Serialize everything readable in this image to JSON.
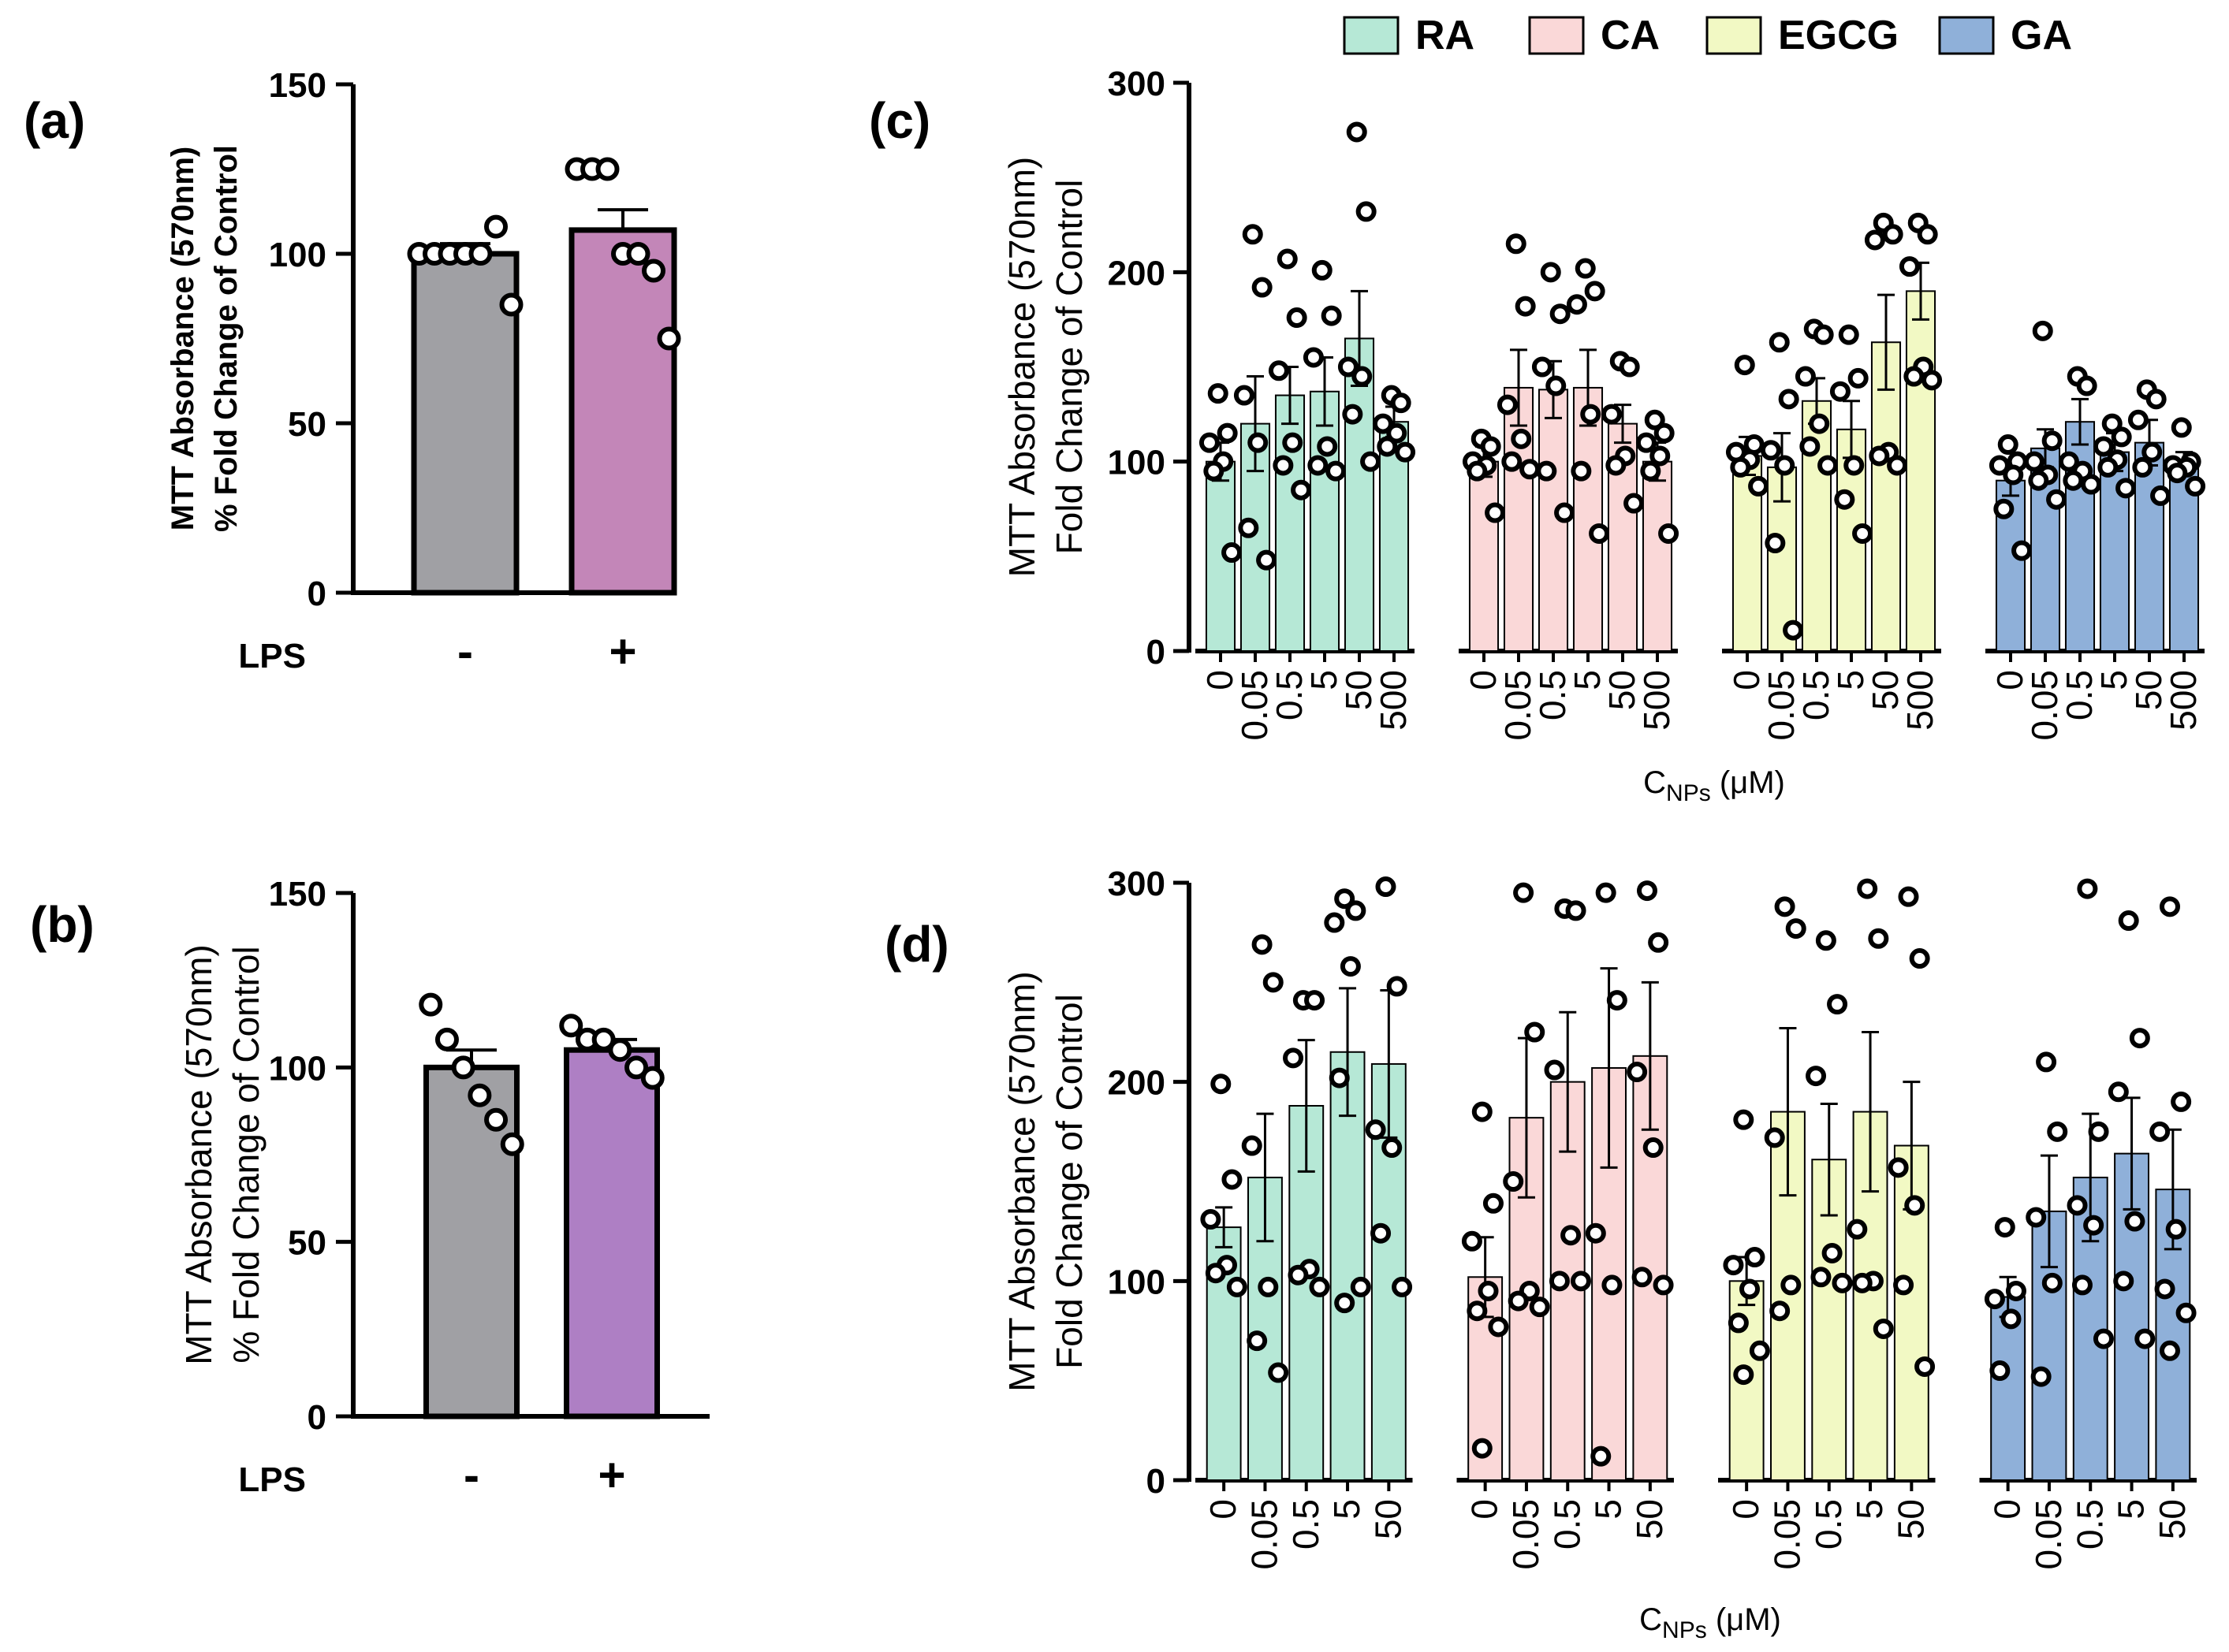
{
  "chart_data": [
    {
      "id": "a",
      "panel_label": "(a)",
      "type": "bar",
      "bold_labels": true,
      "ylabel_lines": [
        "MTT Absorbance (570nm)",
        "% Fold Change of Control"
      ],
      "ylim": [
        0,
        150
      ],
      "yticks": [
        "0",
        "50",
        "100",
        "150"
      ],
      "xaxis_title": "LPS",
      "categories": [
        "-",
        "+"
      ],
      "values": [
        100,
        107
      ],
      "errors": [
        3,
        6
      ],
      "colors": [
        "#a0a0a4",
        "#c386b8"
      ],
      "points": [
        [
          100,
          100,
          100,
          100,
          100,
          108,
          85
        ],
        [
          125,
          125,
          125,
          100,
          100,
          95,
          75
        ]
      ]
    },
    {
      "id": "b",
      "panel_label": "(b)",
      "type": "bar",
      "bold_labels": false,
      "ylabel_lines": [
        "MTT Absorbance (570nm)",
        "% Fold Change of Control"
      ],
      "ylim": [
        0,
        150
      ],
      "yticks": [
        "0",
        "50",
        "100",
        "150"
      ],
      "xaxis_title": "LPS",
      "categories": [
        "-",
        "+"
      ],
      "values": [
        100,
        105
      ],
      "errors": [
        5,
        3
      ],
      "colors": [
        "#a0a0a4",
        "#ae7fc4"
      ],
      "points": [
        [
          118,
          108,
          100,
          92,
          85,
          78
        ],
        [
          112,
          108,
          108,
          105,
          100,
          97
        ]
      ]
    },
    {
      "id": "c",
      "panel_label": "(c)",
      "type": "bar",
      "ylabel_lines": [
        "MTT Absorbance (570nm)",
        "Fold Change of Control"
      ],
      "ylim": [
        0,
        300
      ],
      "yticks": [
        "0",
        "100",
        "200",
        "300"
      ],
      "xlabel_main": "C",
      "xlabel_sub": "NPs",
      "xlabel_unit": " (μM)",
      "categories": [
        "0",
        "0.05",
        "0.5",
        "5",
        "50",
        "500"
      ],
      "series": [
        {
          "name": "RA",
          "color": "#b6e8d6",
          "values": [
            100,
            120,
            135,
            137,
            165,
            121
          ],
          "errors": [
            10,
            25,
            15,
            18,
            25,
            8
          ],
          "points": [
            [
              136,
              115,
              110,
              100,
              95,
              52
            ],
            [
              220,
              192,
              135,
              110,
              65,
              48
            ],
            [
              207,
              176,
              148,
              110,
              98,
              85
            ],
            [
              201,
              177,
              155,
              108,
              98,
              95
            ],
            [
              274,
              232,
              150,
              145,
              125,
              100
            ],
            [
              135,
              131,
              120,
              115,
              108,
              105
            ]
          ]
        },
        {
          "name": "CA",
          "color": "#fad8d8",
          "values": [
            100,
            139,
            138,
            139,
            120,
            100
          ],
          "errors": [
            8,
            20,
            15,
            20,
            10,
            10
          ],
          "points": [
            [
              112,
              108,
              100,
              98,
              95,
              73
            ],
            [
              215,
              182,
              130,
              112,
              100,
              96
            ],
            [
              200,
              178,
              150,
              140,
              95,
              73
            ],
            [
              202,
              190,
              183,
              125,
              95,
              62
            ],
            [
              153,
              150,
              125,
              103,
              98,
              78
            ],
            [
              122,
              115,
              110,
              103,
              95,
              62
            ]
          ]
        },
        {
          "name": "EGCG",
          "color": "#f2f9c4",
          "values": [
            103,
            97,
            132,
            117,
            163,
            190
          ],
          "errors": [
            10,
            18,
            12,
            15,
            25,
            15
          ],
          "points": [
            [
              151,
              109,
              105,
              101,
              97,
              87
            ],
            [
              163,
              133,
              106,
              98,
              57,
              11
            ],
            [
              170,
              167,
              145,
              120,
              108,
              98
            ],
            [
              167,
              144,
              137,
              98,
              80,
              62
            ],
            [
              226,
              220,
              217,
              105,
              103,
              98
            ],
            [
              226,
              220,
              203,
              150,
              145,
              143
            ]
          ]
        },
        {
          "name": "GA",
          "color": "#8fb0d9",
          "values": [
            90,
            107,
            121,
            105,
            110,
            100
          ],
          "errors": [
            8,
            10,
            12,
            10,
            12,
            5
          ],
          "points": [
            [
              109,
              100,
              98,
              93,
              75,
              53
            ],
            [
              169,
              111,
              100,
              93,
              90,
              80
            ],
            [
              145,
              140,
              100,
              95,
              90,
              88
            ],
            [
              120,
              113,
              108,
              101,
              97,
              86
            ],
            [
              138,
              133,
              122,
              105,
              97,
              82
            ],
            [
              118,
              100,
              98,
              97,
              94,
              87
            ]
          ]
        }
      ]
    },
    {
      "id": "d",
      "panel_label": "(d)",
      "type": "bar",
      "ylabel_lines": [
        "MTT Absorbance (570nm)",
        "Fold Change of Control"
      ],
      "ylim": [
        0,
        300
      ],
      "yticks": [
        "0",
        "100",
        "200",
        "300"
      ],
      "xlabel_main": "C",
      "xlabel_sub": "NPs",
      "xlabel_unit": " (μM)",
      "categories": [
        "0",
        "0.05",
        "0.5",
        "5",
        "50"
      ],
      "series": [
        {
          "name": "RA",
          "color": "#b6e8d6",
          "values": [
            127,
            152,
            188,
            215,
            209
          ],
          "errors": [
            10,
            32,
            33,
            32,
            37
          ],
          "points": [
            [
              199,
              151,
              131,
              108,
              104,
              97
            ],
            [
              269,
              250,
              168,
              97,
              70,
              54
            ],
            [
              241,
              241,
              212,
              106,
              103,
              97
            ],
            [
              292,
              286,
              280,
              258,
              202,
              97,
              89
            ],
            [
              298,
              248,
              176,
              167,
              124,
              97
            ]
          ]
        },
        {
          "name": "CA",
          "color": "#fad8d8",
          "values": [
            102,
            182,
            200,
            207,
            213
          ],
          "errors": [
            20,
            40,
            35,
            50,
            37
          ],
          "points": [
            [
              185,
              139,
              120,
              95,
              85,
              77,
              16
            ],
            [
              295,
              225,
              150,
              95,
              90,
              87
            ],
            [
              287,
              286,
              206,
              123,
              100,
              100
            ],
            [
              295,
              241,
              124,
              98,
              12
            ],
            [
              296,
              270,
              205,
              167,
              102,
              98
            ]
          ]
        },
        {
          "name": "EGCG",
          "color": "#f2f9c4",
          "values": [
            100,
            185,
            161,
            185,
            168
          ],
          "errors": [
            12,
            42,
            28,
            40,
            32
          ],
          "points": [
            [
              181,
              112,
              108,
              96,
              79,
              65,
              53
            ],
            [
              288,
              277,
              172,
              98,
              85
            ],
            [
              271,
              239,
              203,
              114,
              102,
              99
            ],
            [
              297,
              272,
              126,
              100,
              99,
              76
            ],
            [
              293,
              262,
              157,
              138,
              98,
              57
            ]
          ]
        },
        {
          "name": "GA",
          "color": "#8fb0d9",
          "values": [
            92,
            135,
            152,
            164,
            146
          ],
          "errors": [
            10,
            28,
            32,
            28,
            30
          ],
          "points": [
            [
              127,
              95,
              91,
              81,
              55
            ],
            [
              210,
              175,
              132,
              99,
              52
            ],
            [
              297,
              175,
              138,
              128,
              98,
              71
            ],
            [
              281,
              222,
              195,
              130,
              100,
              71
            ],
            [
              288,
              190,
              175,
              126,
              96,
              84,
              65
            ]
          ]
        }
      ]
    }
  ]
}
